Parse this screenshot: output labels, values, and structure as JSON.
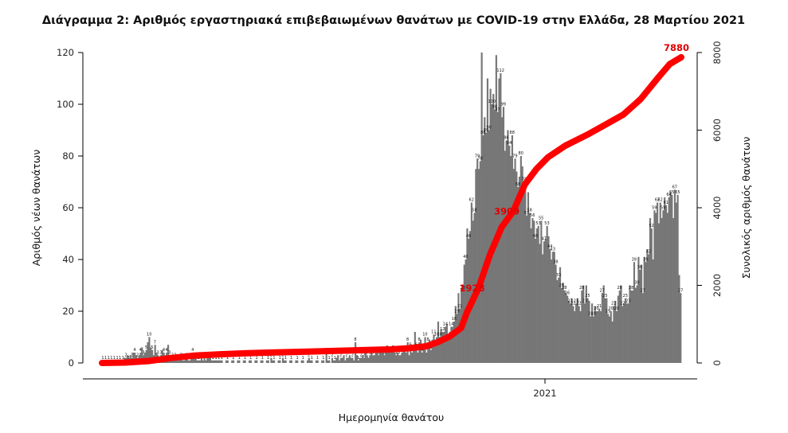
{
  "chart_data": {
    "type": "bar",
    "title": "Διάγραμμα 2: Αριθμός εργαστηριακά επιβεβαιωμένων θανάτων με COVID-19 στην Ελλάδα, 28 Μαρτίου 2021",
    "xlabel": "Ημερομηνία θανάτου",
    "ylabel": "Αριθμός νέων θανάτων",
    "y2label": "Συνολικός αριθμός θανάτων",
    "x_ticks": [
      "2021"
    ],
    "ylim": [
      0,
      120
    ],
    "y_ticks": [
      0,
      20,
      40,
      60,
      80,
      100,
      120
    ],
    "y2lim": [
      0,
      8000
    ],
    "y2_ticks": [
      0,
      2000,
      4000,
      6000,
      8000
    ],
    "grid": false,
    "bar_color": "#777777",
    "line_color": "#ff0000",
    "label_color": "#e00000",
    "series": [
      {
        "name": "",
        "type": "bar",
        "values": [
          1,
          1,
          1,
          1,
          1,
          1,
          1,
          1,
          1,
          1,
          1,
          1,
          1,
          1,
          1,
          2,
          2,
          3,
          1,
          3,
          2,
          4,
          4,
          3,
          2,
          3,
          4,
          6,
          3,
          4,
          5,
          8,
          10,
          6,
          5,
          3,
          7,
          4,
          3,
          2,
          3,
          5,
          4,
          3,
          4,
          7,
          3,
          3,
          2,
          2,
          2,
          1,
          1,
          2,
          2,
          1,
          1,
          2,
          2,
          1,
          1,
          2,
          4,
          3,
          2,
          1,
          1,
          1,
          2,
          1,
          2,
          1,
          2,
          3,
          2,
          1,
          1,
          1,
          1,
          1,
          1,
          1,
          1,
          0,
          0,
          1,
          1,
          0,
          0,
          1,
          1,
          0,
          0,
          1,
          1,
          0,
          0,
          1,
          1,
          0,
          0,
          1,
          1,
          0,
          0,
          1,
          1,
          0,
          0,
          1,
          1,
          0,
          0,
          1,
          1,
          0,
          2,
          1,
          1,
          0,
          0,
          1,
          1,
          0,
          2,
          1,
          1,
          0,
          0,
          1,
          1,
          0,
          0,
          1,
          1,
          0,
          0,
          1,
          1,
          0,
          0,
          1,
          2,
          1,
          1,
          0,
          0,
          1,
          1,
          0,
          0,
          1,
          1,
          0,
          4,
          1,
          1,
          0,
          2,
          1,
          1,
          2,
          3,
          1,
          2,
          2,
          3,
          1,
          2,
          2,
          3,
          2,
          2,
          1,
          8,
          3,
          1,
          2,
          2,
          3,
          2,
          4,
          3,
          2,
          3,
          4,
          3,
          3,
          4,
          5,
          3,
          4,
          4,
          5,
          3,
          4,
          5,
          5,
          4,
          6,
          5,
          4,
          3,
          4,
          3,
          3,
          4,
          5,
          5,
          4,
          8,
          3,
          6,
          4,
          5,
          12,
          6,
          4,
          8,
          9,
          4,
          6,
          10,
          4,
          8,
          9,
          5,
          9,
          11,
          8,
          10,
          16,
          10,
          13,
          12,
          12,
          14,
          15,
          9,
          12,
          14,
          14,
          16,
          22,
          19,
          27,
          21,
          29,
          28,
          38,
          40,
          52,
          48,
          51,
          62,
          55,
          58,
          75,
          79,
          75,
          78,
          120,
          88,
          95,
          89,
          110,
          90,
          106,
          100,
          104,
          98,
          119,
          97,
          110,
          112,
          95,
          99,
          82,
          86,
          90,
          84,
          80,
          88,
          75,
          79,
          74,
          68,
          72,
          80,
          76,
          70,
          70,
          57,
          66,
          58,
          52,
          56,
          55,
          48,
          52,
          53,
          46,
          55,
          42,
          47,
          48,
          53,
          49,
          44,
          40,
          43,
          43,
          38,
          32,
          33,
          37,
          29,
          31,
          28,
          27,
          26,
          24,
          23,
          25,
          22,
          20,
          23,
          25,
          22,
          20,
          28,
          30,
          23,
          30,
          25,
          24,
          18,
          23,
          18,
          22,
          20,
          20,
          21,
          20,
          27,
          30,
          25,
          25,
          19,
          18,
          20,
          16,
          22,
          24,
          20,
          26,
          28,
          30,
          22,
          23,
          25,
          23,
          23,
          30,
          28,
          28,
          39,
          29,
          30,
          41,
          36,
          38,
          27,
          41,
          39,
          44,
          42,
          56,
          52,
          40,
          59,
          58,
          62,
          54,
          62,
          56,
          59,
          64,
          61,
          58,
          64,
          66,
          65,
          56,
          67,
          62,
          65,
          34,
          27
        ]
      },
      {
        "name": "",
        "type": "line",
        "axis": "right",
        "x_frac": [
          0.0,
          0.04,
          0.08,
          0.12,
          0.16,
          0.2,
          0.25,
          0.3,
          0.35,
          0.4,
          0.45,
          0.5,
          0.53,
          0.56,
          0.58,
          0.6,
          0.62,
          0.63,
          0.65,
          0.67,
          0.69,
          0.71,
          0.73,
          0.75,
          0.77,
          0.8,
          0.84,
          0.87,
          0.9,
          0.93,
          0.96,
          0.98,
          1.0
        ],
        "values": [
          0,
          10,
          50,
          130,
          190,
          220,
          250,
          270,
          290,
          310,
          330,
          350,
          380,
          430,
          540,
          680,
          900,
          1300,
          1928,
          2800,
          3500,
          3909,
          4600,
          5000,
          5300,
          5600,
          5900,
          6150,
          6400,
          6800,
          7350,
          7700,
          7880
        ]
      }
    ],
    "point_labels": [
      {
        "text": "1928",
        "x_frac": 0.65,
        "value": 1928
      },
      {
        "text": "3909",
        "x_frac": 0.71,
        "value": 3909
      },
      {
        "text": "7880",
        "x_frac": 1.0,
        "value": 7880
      }
    ]
  }
}
